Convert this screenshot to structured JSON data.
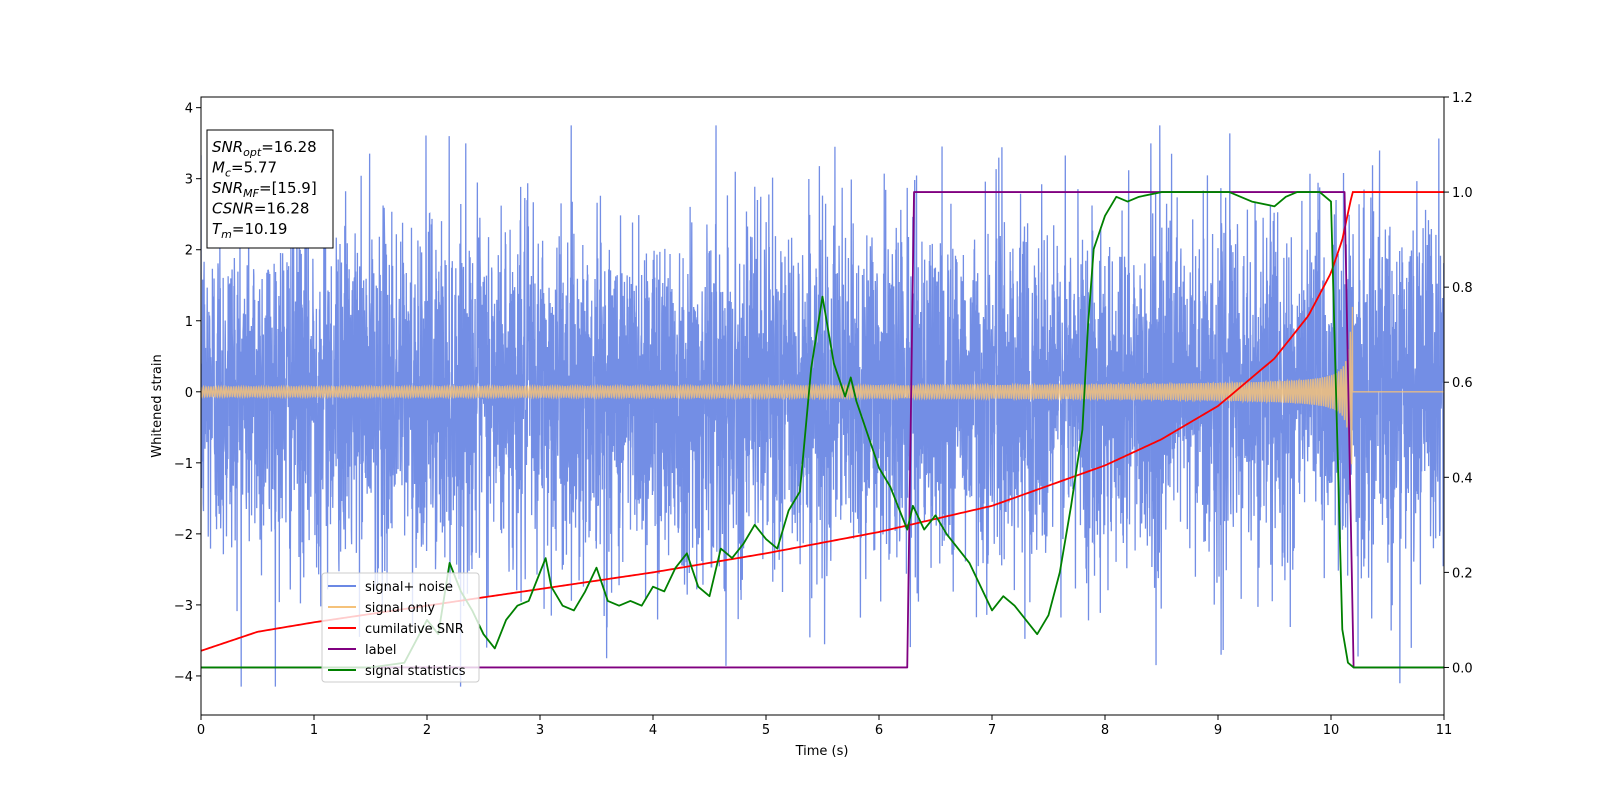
{
  "chart_data": {
    "type": "line",
    "xlabel": "Time (s)",
    "ylabel": "Whitened strain",
    "xlim": [
      0,
      11
    ],
    "ylim_left": [
      -4.55,
      4.15
    ],
    "ylim_right": [
      -0.1,
      1.2
    ],
    "xticks": [
      0,
      1,
      2,
      3,
      4,
      5,
      6,
      7,
      8,
      9,
      10,
      11
    ],
    "yticks_left": [
      -4,
      -3,
      -2,
      -1,
      0,
      1,
      2,
      3,
      4
    ],
    "yticks_right": [
      0.0,
      0.2,
      0.4,
      0.6,
      0.8,
      1.0,
      1.2
    ],
    "legend_position": "lower-left",
    "info_box": {
      "lines": [
        {
          "sym": "SNR",
          "sub": "opt",
          "val": "=16.28"
        },
        {
          "sym": "M",
          "sub": "c",
          "val": "=5.77"
        },
        {
          "sym": "SNR",
          "sub": "MF",
          "val": "=[15.9]"
        },
        {
          "sym": "CSNR",
          "sub": "",
          "val": "=16.28"
        },
        {
          "sym": "T",
          "sub": "m",
          "val": "=10.19"
        }
      ]
    },
    "series": [
      {
        "name": "signal+ noise",
        "axis": "left",
        "color": "#6b88e4",
        "kind": "noise",
        "std": 1.2,
        "range": [
          -4.15,
          3.75
        ],
        "t_end": 11
      },
      {
        "name": "signal only",
        "axis": "left",
        "color": "#f5c27a",
        "kind": "chirp",
        "t_merger": 10.19,
        "amplitude_start": 0.07,
        "amplitude_peak": 1.5,
        "t_end": 11
      },
      {
        "name": "cumilative SNR",
        "axis": "right",
        "color": "#ff0000",
        "x": [
          0,
          0.5,
          1,
          2,
          3,
          4,
          5,
          6,
          7,
          8,
          8.5,
          9,
          9.5,
          9.8,
          10,
          10.1,
          10.19,
          11
        ],
        "y": [
          0.035,
          0.075,
          0.095,
          0.13,
          0.165,
          0.2,
          0.24,
          0.285,
          0.34,
          0.425,
          0.48,
          0.55,
          0.65,
          0.74,
          0.83,
          0.9,
          1.0,
          1.0
        ]
      },
      {
        "name": "label",
        "axis": "right",
        "color": "#800080",
        "x": [
          0,
          6.25,
          6.31,
          10.12,
          10.2,
          11
        ],
        "y": [
          0,
          0,
          1,
          1,
          0,
          0
        ]
      },
      {
        "name": "signal statistics",
        "axis": "right",
        "color": "#008000",
        "x": [
          0,
          0.5,
          1,
          1.5,
          1.8,
          2.0,
          2.1,
          2.2,
          2.3,
          2.4,
          2.5,
          2.6,
          2.7,
          2.8,
          2.9,
          3.0,
          3.05,
          3.1,
          3.2,
          3.3,
          3.4,
          3.5,
          3.6,
          3.7,
          3.8,
          3.9,
          4.0,
          4.1,
          4.2,
          4.3,
          4.4,
          4.5,
          4.6,
          4.7,
          4.8,
          4.9,
          5.0,
          5.1,
          5.2,
          5.3,
          5.4,
          5.5,
          5.6,
          5.7,
          5.75,
          5.8,
          5.9,
          6.0,
          6.1,
          6.2,
          6.25,
          6.3,
          6.4,
          6.5,
          6.6,
          6.7,
          6.8,
          6.9,
          7.0,
          7.1,
          7.2,
          7.3,
          7.4,
          7.5,
          7.6,
          7.7,
          7.8,
          7.85,
          7.9,
          8.0,
          8.1,
          8.2,
          8.3,
          8.5,
          8.7,
          8.9,
          9.1,
          9.3,
          9.5,
          9.6,
          9.7,
          9.9,
          10.0,
          10.1,
          10.15,
          10.2,
          10.5,
          11
        ],
        "y": [
          0.0,
          0.0,
          0.0,
          0.0,
          0.01,
          0.1,
          0.07,
          0.22,
          0.16,
          0.12,
          0.07,
          0.04,
          0.1,
          0.13,
          0.14,
          0.2,
          0.23,
          0.17,
          0.13,
          0.12,
          0.16,
          0.21,
          0.14,
          0.13,
          0.14,
          0.13,
          0.17,
          0.16,
          0.21,
          0.24,
          0.17,
          0.15,
          0.25,
          0.23,
          0.26,
          0.3,
          0.27,
          0.25,
          0.33,
          0.37,
          0.63,
          0.78,
          0.64,
          0.57,
          0.61,
          0.56,
          0.49,
          0.42,
          0.38,
          0.32,
          0.29,
          0.34,
          0.29,
          0.32,
          0.28,
          0.25,
          0.22,
          0.17,
          0.12,
          0.15,
          0.13,
          0.1,
          0.07,
          0.11,
          0.2,
          0.34,
          0.5,
          0.72,
          0.88,
          0.95,
          0.99,
          0.98,
          0.99,
          1.0,
          1.0,
          1.0,
          1.0,
          0.98,
          0.97,
          0.99,
          1.0,
          1.0,
          0.98,
          0.08,
          0.01,
          0.0,
          0.0,
          0.0
        ]
      }
    ]
  }
}
